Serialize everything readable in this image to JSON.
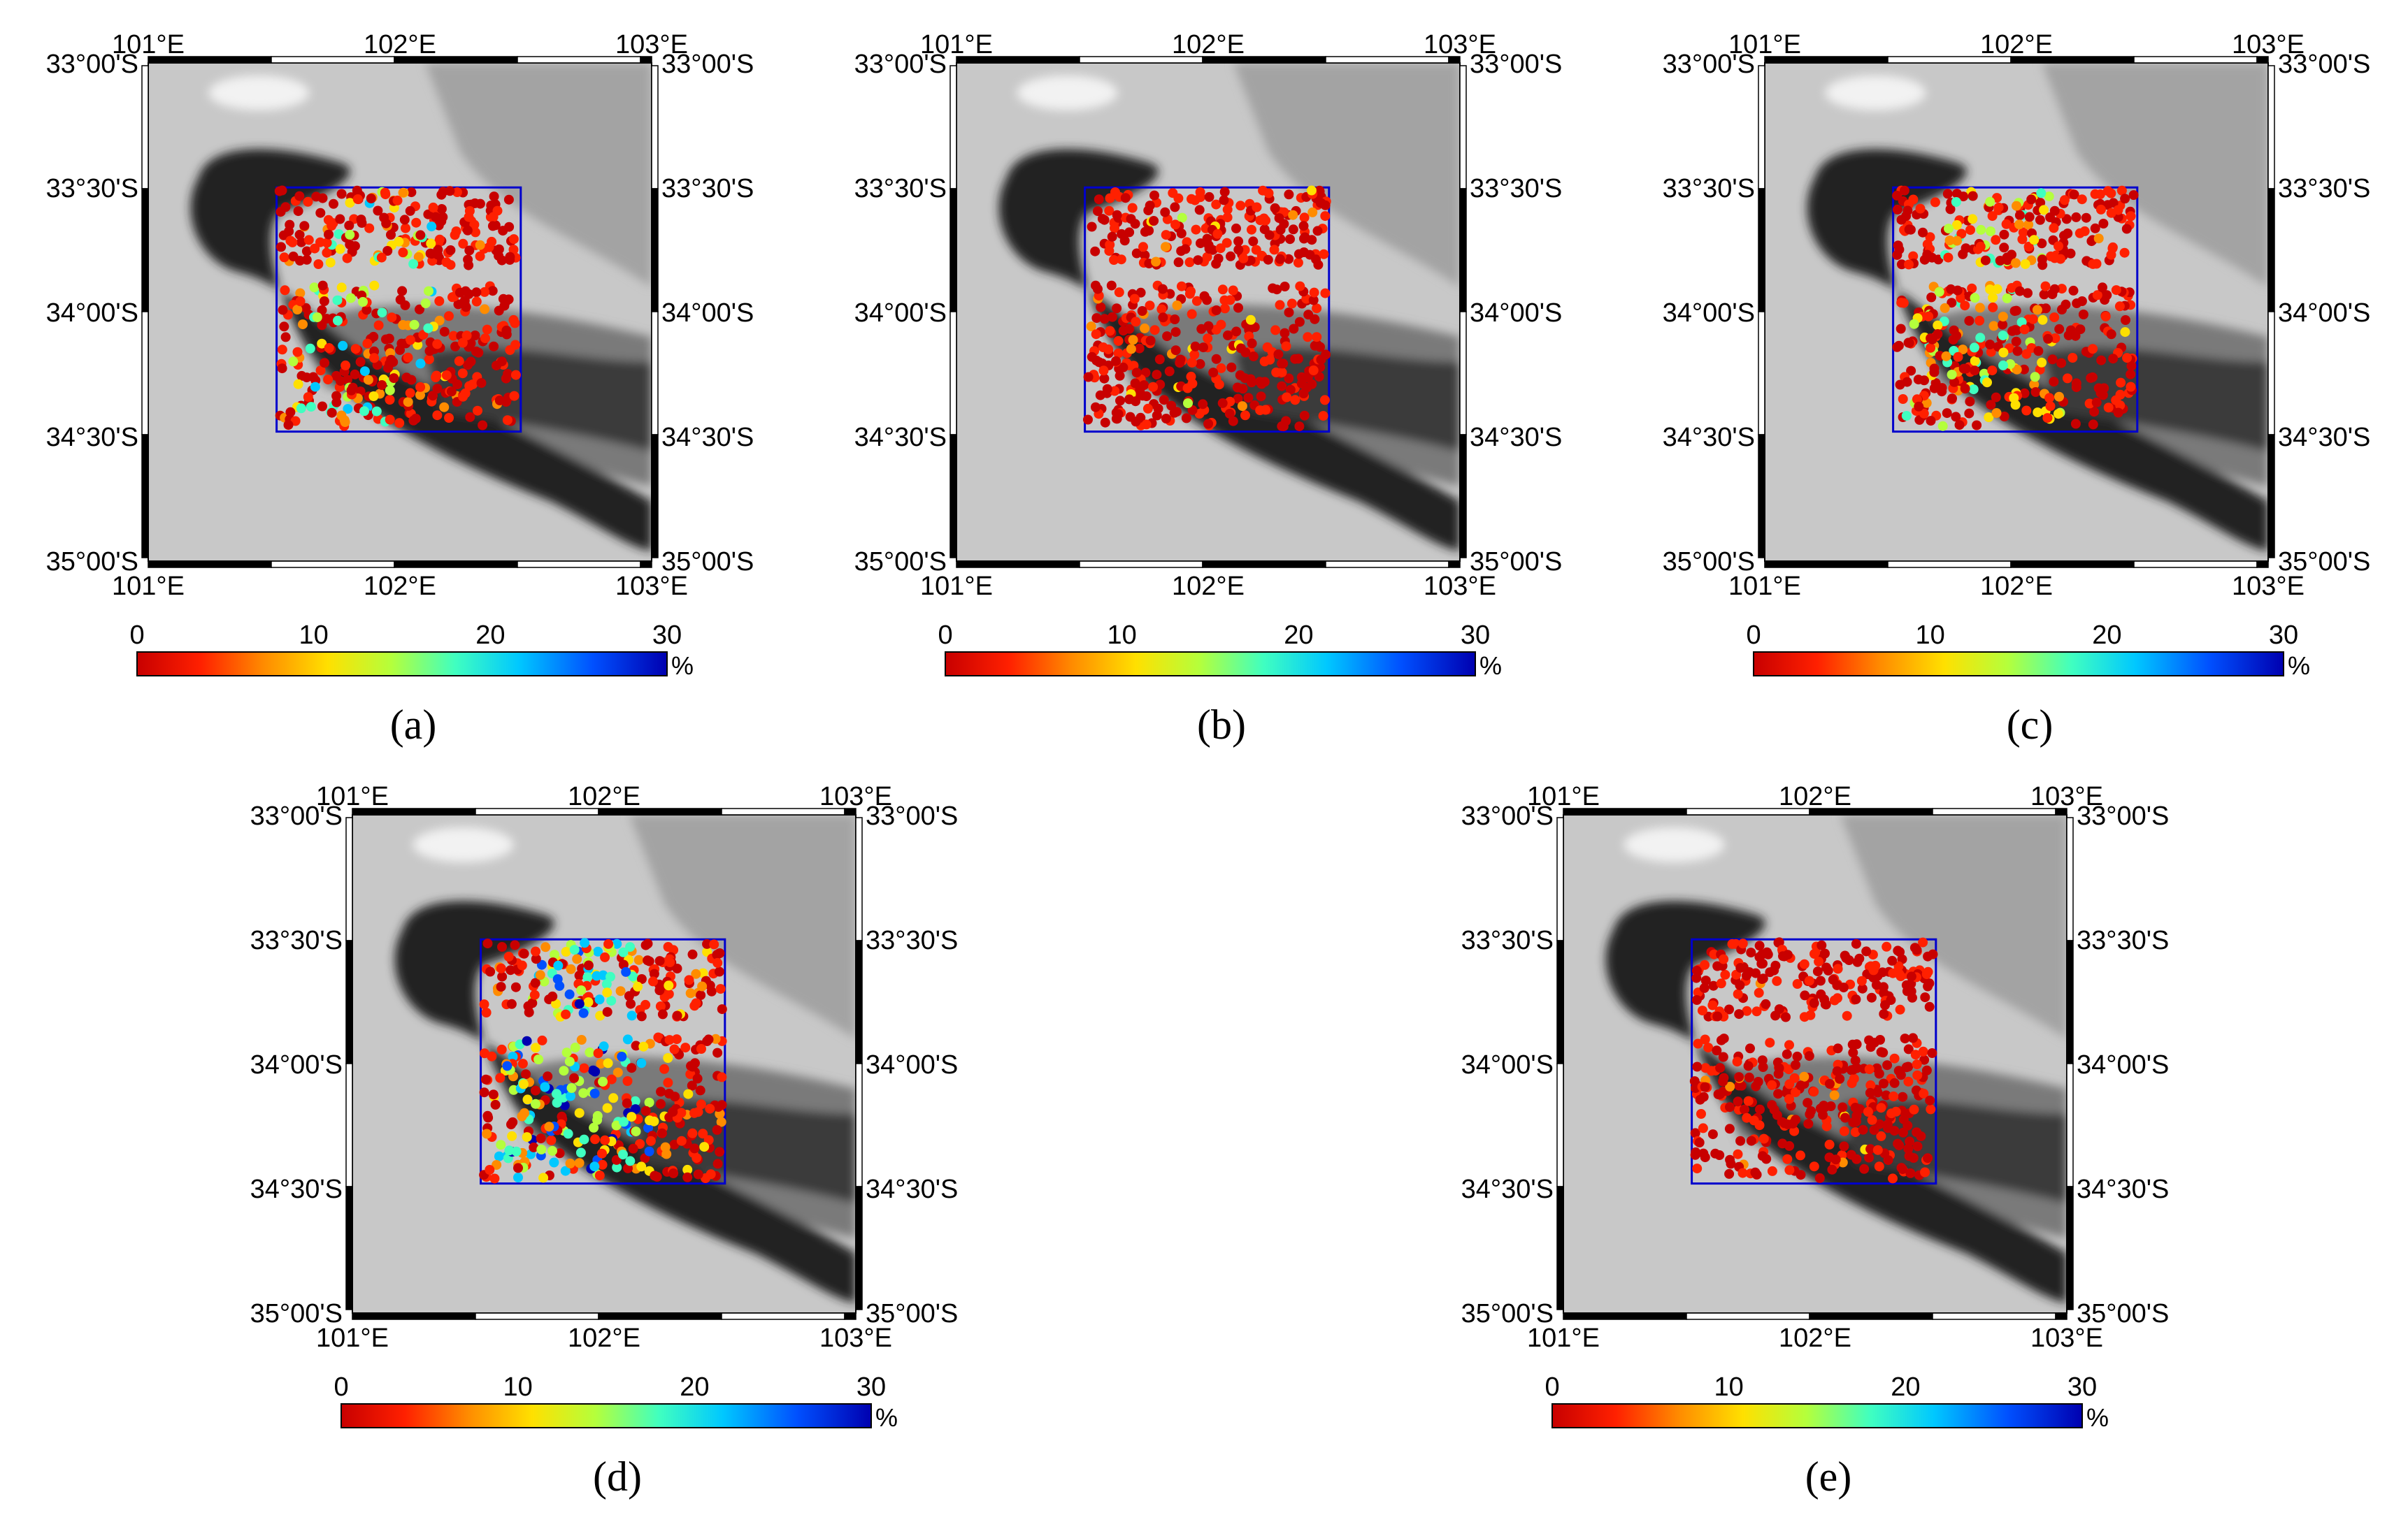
{
  "figure": {
    "colorbar": {
      "tick_labels": [
        "0",
        "10",
        "20",
        "30"
      ],
      "unit": "%",
      "colormap": "jet-reversed",
      "colors": [
        "#c80000",
        "#ff2000",
        "#ff8c00",
        "#ffe000",
        "#b4ff3c",
        "#40ffc0",
        "#00c8ff",
        "#0050ff",
        "#0000b0"
      ]
    },
    "map": {
      "lon_labels": [
        "101°E",
        "102°E",
        "103°E"
      ],
      "lat_labels": [
        "33°00'S",
        "33°30'S",
        "34°00'S",
        "34°30'S",
        "35°00'S"
      ],
      "study_area_color": "#0000cc",
      "background_colors": {
        "low": "#232323",
        "mid": "#7a7a7a",
        "high": "#c8c8c8"
      }
    },
    "panels": [
      {
        "label": "(a)",
        "description": "mostly red with yellow-cyan cluster in northern strip",
        "high_value_cluster": "moderate"
      },
      {
        "label": "(b)",
        "description": "predominantly red, few green points",
        "high_value_cluster": "low"
      },
      {
        "label": "(c)",
        "description": "red with yellow-cyan cluster in northern strip",
        "high_value_cluster": "moderate"
      },
      {
        "label": "(d)",
        "description": "many cyan and blue points in both strips",
        "high_value_cluster": "high"
      },
      {
        "label": "(e)",
        "description": "almost entirely dark red",
        "high_value_cluster": "very-low"
      }
    ]
  }
}
